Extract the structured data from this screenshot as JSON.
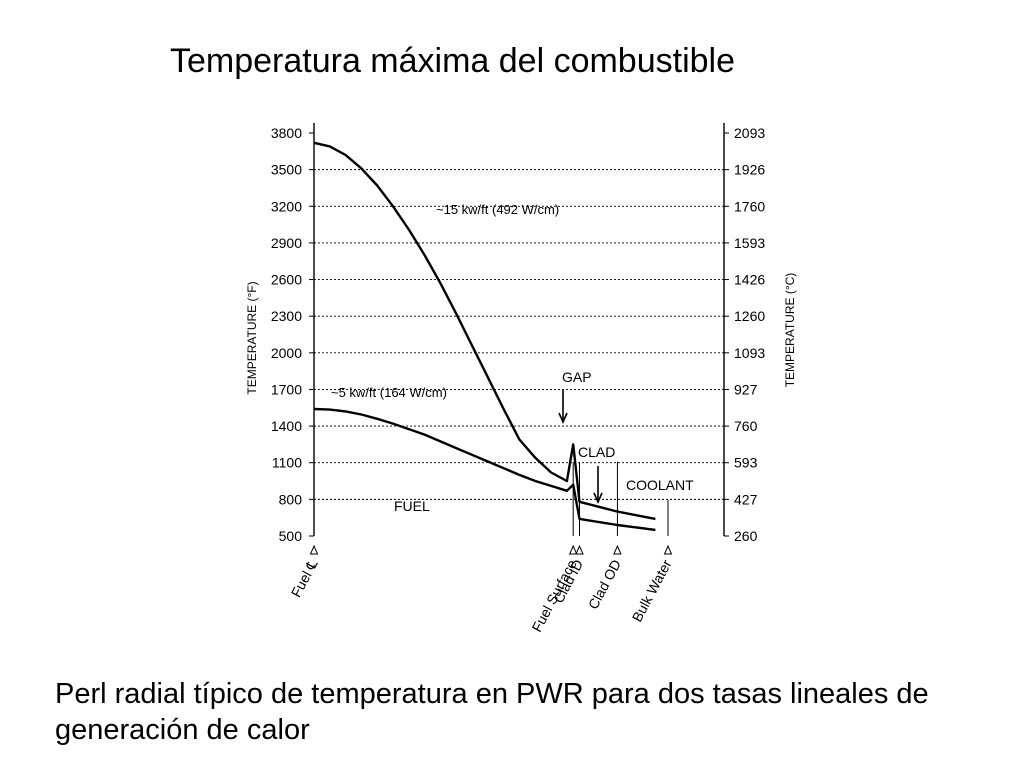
{
  "title": "Temperatura máxima del combustible",
  "caption": "Perl radial típico de temperatura en PWR para dos tasas lineales de generación de calor",
  "chart_data": {
    "type": "line",
    "ylabel_left": "TEMPERATURE (°F)",
    "ylabel_right": "TEMPERATURE (°C)",
    "ylim": [
      500,
      3800
    ],
    "left_ticks": [
      "3800",
      "3500",
      "3200",
      "2900",
      "2600",
      "2300",
      "2000",
      "1700",
      "1400",
      "1100",
      "800",
      "500"
    ],
    "right_ticks": [
      "2093",
      "1926",
      "1760",
      "1593",
      "1426",
      "1260",
      "1093",
      "927",
      "760",
      "593",
      "427",
      "260"
    ],
    "grid": true,
    "x_markers": [
      {
        "label": "Fuel ℄",
        "x": 0
      },
      {
        "label": "Fuel Surface",
        "x": 0.82
      },
      {
        "label": "Clad ID",
        "x": 0.84
      },
      {
        "label": "Clad OD",
        "x": 0.96
      },
      {
        "label": "Bulk Water",
        "x": 1.12
      }
    ],
    "series": [
      {
        "name": "~15 kw/ft (492 W/cm)",
        "x": [
          0,
          0.05,
          0.1,
          0.15,
          0.2,
          0.25,
          0.3,
          0.35,
          0.4,
          0.45,
          0.5,
          0.55,
          0.6,
          0.65,
          0.7,
          0.75,
          0.8,
          0.82,
          0.84,
          0.96,
          1.08
        ],
        "y": [
          3720,
          3690,
          3620,
          3510,
          3370,
          3200,
          3010,
          2800,
          2570,
          2320,
          2060,
          1800,
          1540,
          1290,
          1140,
          1020,
          950,
          1250,
          780,
          700,
          640
        ]
      },
      {
        "name": "~5 kw/ft (164 W/cm)",
        "x": [
          0,
          0.05,
          0.1,
          0.15,
          0.2,
          0.25,
          0.3,
          0.35,
          0.4,
          0.45,
          0.5,
          0.55,
          0.6,
          0.65,
          0.7,
          0.75,
          0.8,
          0.82,
          0.84,
          0.96,
          1.08
        ],
        "y": [
          1540,
          1535,
          1520,
          1495,
          1460,
          1420,
          1375,
          1330,
          1275,
          1220,
          1165,
          1110,
          1055,
          1000,
          950,
          910,
          870,
          920,
          640,
          590,
          550
        ]
      }
    ],
    "annotations": [
      "GAP",
      "CLAD",
      "COOLANT",
      "FUEL"
    ]
  }
}
